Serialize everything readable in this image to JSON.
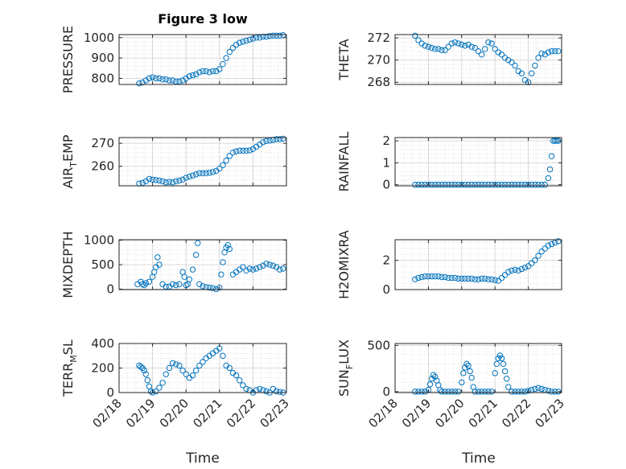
{
  "figure": {
    "title": "Figure 3 low",
    "xlabel": "Time"
  },
  "colors": {
    "marker": "#0072BD",
    "grid": "#d5d5d5",
    "axis": "#262626"
  },
  "x_ticks": [
    "02/18",
    "02/19",
    "02/20",
    "02/21",
    "02/22",
    "02/23"
  ],
  "x_tick_values": [
    18,
    19,
    20,
    21,
    22,
    23
  ],
  "chart_data": [
    {
      "type": "scatter",
      "ylabel": "PRESSURE",
      "ylim": [
        770,
        1015
      ],
      "yticks": [
        800,
        900,
        1000
      ],
      "grid": true,
      "x": [
        18.6,
        18.7,
        18.8,
        18.9,
        19.0,
        19.1,
        19.2,
        19.3,
        19.4,
        19.5,
        19.6,
        19.7,
        19.8,
        19.9,
        20.0,
        20.1,
        20.2,
        20.3,
        20.4,
        20.5,
        20.6,
        20.7,
        20.8,
        20.9,
        21.0,
        21.1,
        21.2,
        21.3,
        21.4,
        21.5,
        21.6,
        21.7,
        21.8,
        21.9,
        22.0,
        22.1,
        22.2,
        22.3,
        22.4,
        22.5,
        22.6,
        22.7,
        22.8,
        22.9
      ],
      "y": [
        775,
        780,
        790,
        800,
        805,
        800,
        800,
        795,
        795,
        790,
        790,
        785,
        785,
        790,
        800,
        810,
        815,
        820,
        830,
        835,
        835,
        830,
        835,
        835,
        845,
        870,
        900,
        930,
        950,
        965,
        975,
        980,
        985,
        990,
        995,
        1000,
        1000,
        1005,
        1005,
        1008,
        1010,
        1010,
        1010,
        1012
      ]
    },
    {
      "type": "scatter",
      "ylabel": "THETA",
      "ylim": [
        267.8,
        272.3
      ],
      "yticks": [
        268,
        270,
        272
      ],
      "grid": true,
      "x": [
        18.6,
        18.7,
        18.8,
        18.9,
        19.0,
        19.1,
        19.2,
        19.3,
        19.4,
        19.5,
        19.6,
        19.7,
        19.8,
        19.9,
        20.0,
        20.1,
        20.2,
        20.3,
        20.4,
        20.5,
        20.6,
        20.7,
        20.8,
        20.9,
        21.0,
        21.1,
        21.2,
        21.3,
        21.4,
        21.5,
        21.6,
        21.7,
        21.8,
        21.9,
        22.0,
        22.1,
        22.2,
        22.3,
        22.4,
        22.5,
        22.6,
        22.7,
        22.8,
        22.9
      ],
      "y": [
        272.2,
        271.8,
        271.5,
        271.3,
        271.2,
        271.1,
        271.0,
        271.0,
        270.9,
        270.9,
        271.2,
        271.5,
        271.6,
        271.5,
        271.4,
        271.3,
        271.4,
        271.2,
        271.1,
        270.8,
        270.5,
        271.0,
        271.6,
        271.5,
        271.0,
        270.7,
        270.5,
        270.2,
        270.0,
        269.8,
        269.5,
        269.0,
        268.8,
        268.2,
        268.0,
        268.8,
        269.5,
        270.2,
        270.6,
        270.5,
        270.7,
        270.8,
        270.8,
        270.8
      ]
    },
    {
      "type": "scatter",
      "ylabel": "AIR_TEMP",
      "ylim": [
        251.5,
        272.5
      ],
      "yticks": [
        260,
        270
      ],
      "grid": true,
      "x": [
        18.6,
        18.7,
        18.8,
        18.9,
        19.0,
        19.1,
        19.2,
        19.3,
        19.4,
        19.5,
        19.6,
        19.7,
        19.8,
        19.9,
        20.0,
        20.1,
        20.2,
        20.3,
        20.4,
        20.5,
        20.6,
        20.7,
        20.8,
        20.9,
        21.0,
        21.1,
        21.2,
        21.3,
        21.4,
        21.5,
        21.6,
        21.7,
        21.8,
        21.9,
        22.0,
        22.1,
        22.2,
        22.3,
        22.4,
        22.5,
        22.6,
        22.7,
        22.8,
        22.9
      ],
      "y": [
        252.5,
        252.8,
        253.5,
        254.5,
        254.2,
        254.0,
        253.8,
        253.5,
        253.0,
        253.2,
        253.0,
        253.5,
        253.8,
        254.2,
        255.0,
        255.5,
        256.0,
        256.5,
        257.0,
        257.0,
        257.0,
        257.2,
        257.5,
        258.0,
        259.0,
        260.5,
        262.5,
        264.5,
        266.0,
        266.5,
        266.8,
        266.8,
        266.8,
        266.9,
        267.5,
        268.5,
        269.5,
        270.5,
        271.0,
        271.2,
        271.5,
        271.8,
        271.8,
        272.0
      ]
    },
    {
      "type": "scatter",
      "ylabel": "RAINFALL",
      "ylim": [
        -0.05,
        2.15
      ],
      "yticks": [
        0,
        1,
        2
      ],
      "grid": true,
      "x": [
        18.6,
        18.7,
        18.8,
        18.9,
        19.0,
        19.1,
        19.2,
        19.3,
        19.4,
        19.5,
        19.6,
        19.7,
        19.8,
        19.9,
        20.0,
        20.1,
        20.2,
        20.3,
        20.4,
        20.5,
        20.6,
        20.7,
        20.8,
        20.9,
        21.0,
        21.1,
        21.2,
        21.3,
        21.4,
        21.5,
        21.6,
        21.7,
        21.8,
        21.9,
        22.0,
        22.1,
        22.2,
        22.3,
        22.4,
        22.5,
        22.6,
        22.65,
        22.7,
        22.75,
        22.8,
        22.85,
        22.9
      ],
      "y": [
        0,
        0,
        0,
        0,
        0,
        0,
        0,
        0,
        0,
        0,
        0,
        0,
        0,
        0,
        0,
        0,
        0,
        0,
        0,
        0,
        0,
        0,
        0,
        0,
        0,
        0,
        0,
        0,
        0,
        0,
        0,
        0,
        0,
        0,
        0,
        0,
        0,
        0,
        0,
        0,
        0.3,
        0.7,
        1.3,
        2.0,
        2.0,
        2.0,
        2.0
      ]
    },
    {
      "type": "scatter",
      "ylabel": "MIXDEPTH",
      "ylim": [
        -10,
        1010
      ],
      "yticks": [
        0,
        500,
        1000
      ],
      "grid": true,
      "x": [
        18.55,
        18.65,
        18.7,
        18.75,
        18.8,
        18.9,
        19.0,
        19.05,
        19.1,
        19.15,
        19.2,
        19.3,
        19.4,
        19.5,
        19.6,
        19.7,
        19.8,
        19.9,
        19.95,
        20.0,
        20.05,
        20.1,
        20.2,
        20.3,
        20.35,
        20.4,
        20.5,
        20.6,
        20.7,
        20.8,
        20.9,
        21.0,
        21.05,
        21.1,
        21.15,
        21.2,
        21.25,
        21.3,
        21.4,
        21.5,
        21.6,
        21.7,
        21.8,
        21.9,
        22.0,
        22.1,
        22.2,
        22.3,
        22.4,
        22.5,
        22.6,
        22.7,
        22.8,
        22.9
      ],
      "y": [
        100,
        150,
        100,
        80,
        120,
        150,
        250,
        350,
        450,
        650,
        500,
        100,
        50,
        50,
        100,
        80,
        100,
        350,
        250,
        80,
        100,
        200,
        400,
        700,
        940,
        100,
        60,
        40,
        30,
        20,
        0,
        30,
        300,
        550,
        750,
        850,
        900,
        820,
        300,
        350,
        400,
        450,
        380,
        420,
        400,
        420,
        450,
        480,
        520,
        500,
        480,
        450,
        400,
        420
      ]
    },
    {
      "type": "scatter",
      "ylabel": "H2OMIXRA",
      "ylim": [
        0,
        3.4
      ],
      "yticks": [
        0,
        2
      ],
      "grid": true,
      "x": [
        18.6,
        18.7,
        18.8,
        18.9,
        19.0,
        19.1,
        19.2,
        19.3,
        19.4,
        19.5,
        19.6,
        19.7,
        19.8,
        19.9,
        20.0,
        20.1,
        20.2,
        20.3,
        20.4,
        20.5,
        20.6,
        20.7,
        20.8,
        20.9,
        21.0,
        21.1,
        21.2,
        21.3,
        21.4,
        21.5,
        21.6,
        21.7,
        21.8,
        21.9,
        22.0,
        22.1,
        22.2,
        22.3,
        22.4,
        22.5,
        22.6,
        22.7,
        22.8,
        22.9
      ],
      "y": [
        0.7,
        0.8,
        0.85,
        0.9,
        0.9,
        0.9,
        0.9,
        0.9,
        0.85,
        0.85,
        0.8,
        0.8,
        0.8,
        0.75,
        0.75,
        0.75,
        0.75,
        0.75,
        0.7,
        0.7,
        0.75,
        0.75,
        0.7,
        0.7,
        0.65,
        0.6,
        0.8,
        1.0,
        1.2,
        1.3,
        1.35,
        1.3,
        1.4,
        1.5,
        1.6,
        1.8,
        2.0,
        2.3,
        2.6,
        2.8,
        3.0,
        3.1,
        3.2,
        3.3
      ]
    },
    {
      "type": "scatter",
      "ylabel": "TERR_MSL",
      "ylim": [
        0,
        400
      ],
      "yticks": [
        0,
        200,
        400
      ],
      "grid": true,
      "x": [
        18.6,
        18.65,
        18.7,
        18.75,
        18.8,
        18.85,
        18.9,
        18.95,
        19.0,
        19.1,
        19.2,
        19.3,
        19.4,
        19.5,
        19.6,
        19.7,
        19.8,
        19.9,
        20.0,
        20.1,
        20.2,
        20.3,
        20.4,
        20.5,
        20.6,
        20.7,
        20.8,
        20.9,
        21.0,
        21.1,
        21.2,
        21.3,
        21.4,
        21.5,
        21.6,
        21.7,
        21.8,
        21.9,
        22.0,
        22.1,
        22.2,
        22.3,
        22.4,
        22.5,
        22.6,
        22.7,
        22.8,
        22.9
      ],
      "y": [
        220,
        210,
        200,
        180,
        150,
        100,
        50,
        10,
        0,
        10,
        40,
        80,
        150,
        200,
        240,
        230,
        220,
        180,
        150,
        120,
        140,
        180,
        220,
        250,
        280,
        300,
        320,
        340,
        360,
        300,
        220,
        200,
        160,
        140,
        100,
        60,
        30,
        20,
        0,
        20,
        30,
        20,
        10,
        0,
        30,
        10,
        5,
        0
      ]
    },
    {
      "type": "scatter",
      "ylabel": "SUN_FLUX",
      "ylim": [
        -10,
        520
      ],
      "yticks": [
        0,
        500
      ],
      "grid": true,
      "x": [
        18.6,
        18.7,
        18.8,
        18.9,
        19.0,
        19.05,
        19.1,
        19.15,
        19.2,
        19.25,
        19.3,
        19.35,
        19.4,
        19.5,
        19.6,
        19.7,
        19.8,
        19.9,
        20.0,
        20.05,
        20.1,
        20.15,
        20.2,
        20.25,
        20.3,
        20.35,
        20.4,
        20.5,
        20.6,
        20.7,
        20.8,
        20.9,
        21.0,
        21.05,
        21.1,
        21.15,
        21.2,
        21.25,
        21.3,
        21.35,
        21.4,
        21.5,
        21.6,
        21.7,
        21.8,
        21.9,
        22.0,
        22.1,
        22.2,
        22.3,
        22.4,
        22.5,
        22.6,
        22.7,
        22.8,
        22.9
      ],
      "y": [
        0,
        0,
        0,
        0,
        20,
        80,
        140,
        180,
        160,
        120,
        70,
        20,
        0,
        0,
        0,
        0,
        0,
        0,
        100,
        200,
        260,
        300,
        280,
        220,
        150,
        50,
        0,
        0,
        0,
        0,
        0,
        0,
        200,
        300,
        360,
        390,
        360,
        300,
        220,
        140,
        50,
        0,
        0,
        0,
        0,
        0,
        10,
        20,
        30,
        40,
        30,
        20,
        10,
        0,
        0,
        0
      ]
    }
  ]
}
